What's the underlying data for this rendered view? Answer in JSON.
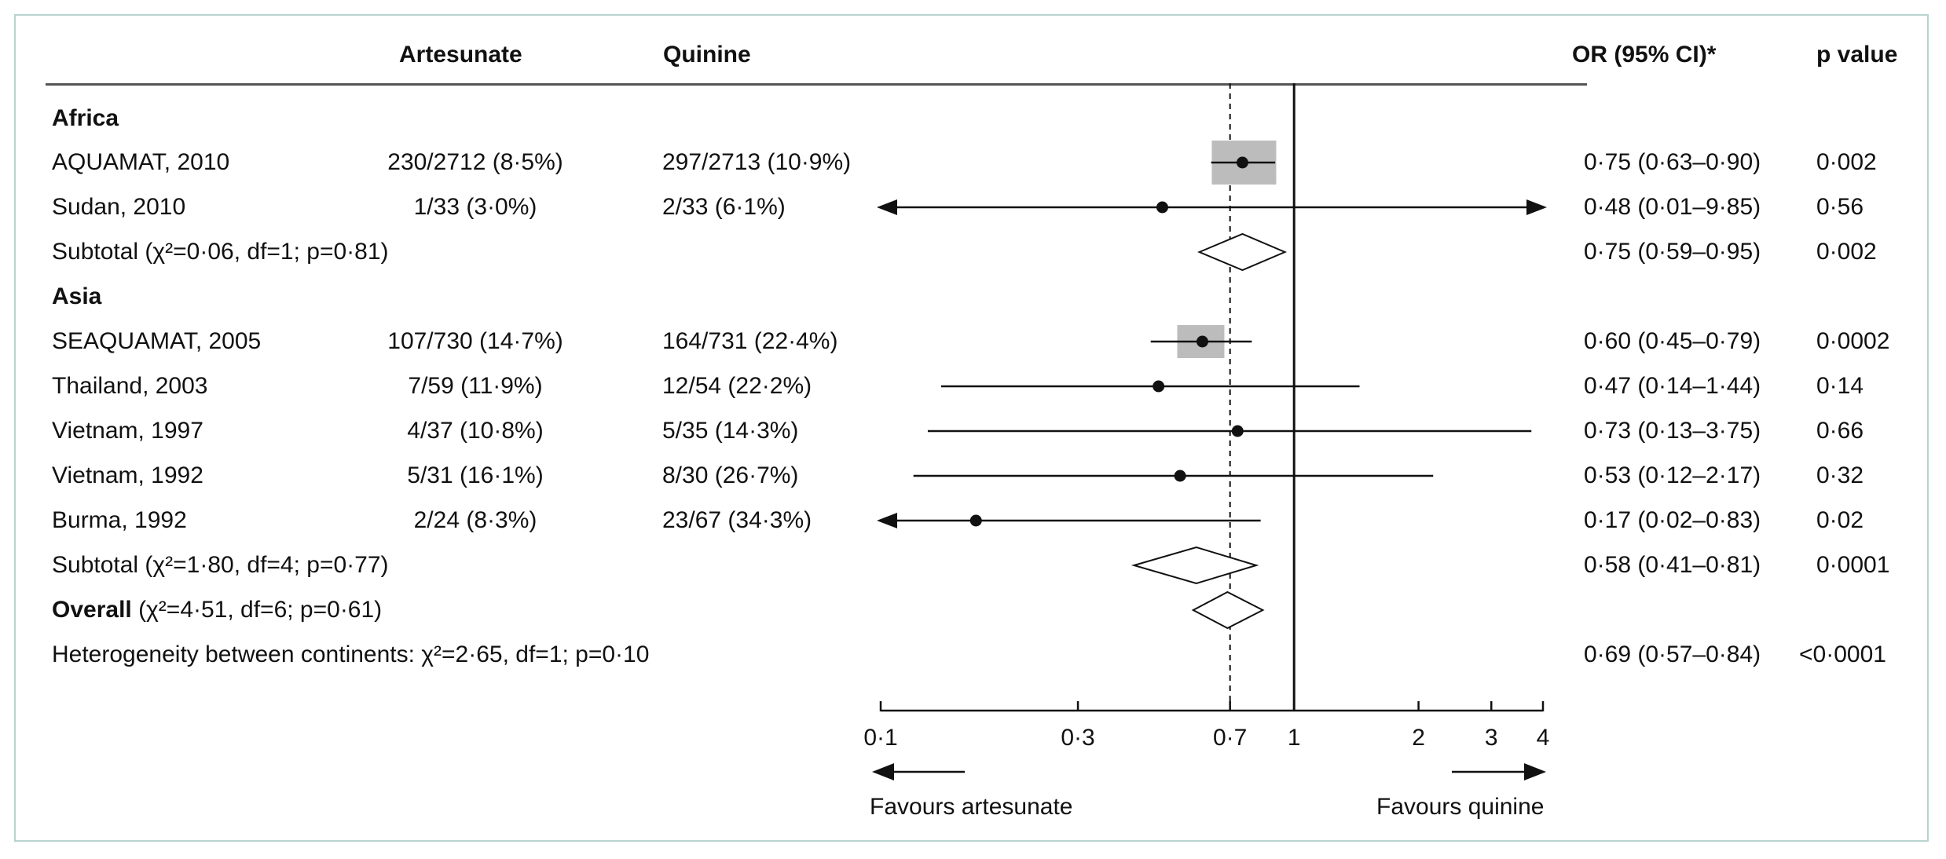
{
  "header": {
    "artesunate": "Artesunate",
    "quinine": "Quinine",
    "or_ci": "OR (95% CI)*",
    "p_value": "p value"
  },
  "colors": {
    "box": "#bcbcbc",
    "line": "#111111",
    "frame": "#b9d3cf"
  },
  "sections": {
    "africa": {
      "label": "Africa"
    },
    "asia": {
      "label": "Asia"
    }
  },
  "rows": [
    {
      "study": "AQUAMAT, 2010",
      "artesunate": "230/2712 (8·5%)",
      "quinine": "297/2713 (10·9%)",
      "or_text": "0·75 (0·63–0·90)",
      "p": "0·002"
    },
    {
      "study": "Sudan, 2010",
      "artesunate": "1/33 (3·0%)",
      "quinine": "2/33 (6·1%)",
      "or_text": "0·48 (0·01–9·85)",
      "p": "0·56"
    },
    {
      "study": "Subtotal (χ²=0·06, df=1; p=0·81)",
      "or_text": "0·75 (0·59–0·95)",
      "p": "0·002"
    },
    {
      "study": "SEAQUAMAT, 2005",
      "artesunate": "107/730 (14·7%)",
      "quinine": "164/731 (22·4%)",
      "or_text": "0·60 (0·45–0·79)",
      "p": "0·0002"
    },
    {
      "study": "Thailand, 2003",
      "artesunate": "7/59 (11·9%)",
      "quinine": "12/54 (22·2%)",
      "or_text": "0·47 (0·14–1·44)",
      "p": "0·14"
    },
    {
      "study": "Vietnam, 1997",
      "artesunate": "4/37 (10·8%)",
      "quinine": "5/35 (14·3%)",
      "or_text": "0·73 (0·13–3·75)",
      "p": "0·66"
    },
    {
      "study": "Vietnam, 1992",
      "artesunate": "5/31 (16·1%)",
      "quinine": "8/30 (26·7%)",
      "or_text": "0·53 (0·12–2·17)",
      "p": "0·32"
    },
    {
      "study": "Burma, 1992",
      "artesunate": "2/24 (8·3%)",
      "quinine": "23/67 (34·3%)",
      "or_text": "0·17 (0·02–0·83)",
      "p": "0·02"
    },
    {
      "study": "Subtotal (χ²=1·80, df=4; p=0·77)",
      "or_text": "0·58 (0·41–0·81)",
      "p": "0·0001"
    },
    {
      "study_bold": "Overall",
      "study_rest": " (χ²=4·51, df=6; p=0·61)"
    },
    {
      "study": "Heterogeneity between continents:  χ²=2·65, df=1; p=0·10",
      "or_text": "0·69 (0·57–0·84)",
      "p": "<0·0001"
    }
  ],
  "legend": {
    "left": "Favours artesunate",
    "right": "Favours quinine"
  },
  "chart_data": {
    "type": "forest",
    "scale": "log",
    "xlim": [
      0.1,
      4
    ],
    "xticks": [
      0.1,
      0.3,
      0.7,
      1,
      2,
      3,
      4
    ],
    "xtick_labels": [
      "0·1",
      "0·3",
      "0·7",
      "1",
      "2",
      "3",
      "4"
    ],
    "null_line": 1,
    "dashed_line": 0.7,
    "studies": [
      {
        "name": "AQUAMAT, 2010",
        "or": 0.75,
        "lo": 0.63,
        "hi": 0.9,
        "weight_box": true,
        "arrow_left": false,
        "arrow_right": false
      },
      {
        "name": "Sudan, 2010",
        "or": 0.48,
        "lo": 0.01,
        "hi": 9.85,
        "weight_box": false,
        "arrow_left": true,
        "arrow_right": true
      },
      {
        "name": "SEAQUAMAT, 2005",
        "or": 0.6,
        "lo": 0.45,
        "hi": 0.79,
        "weight_box": true,
        "arrow_left": false,
        "arrow_right": false
      },
      {
        "name": "Thailand, 2003",
        "or": 0.47,
        "lo": 0.14,
        "hi": 1.44,
        "weight_box": false,
        "arrow_left": false,
        "arrow_right": false
      },
      {
        "name": "Vietnam, 1997",
        "or": 0.73,
        "lo": 0.13,
        "hi": 3.75,
        "weight_box": false,
        "arrow_left": false,
        "arrow_right": false
      },
      {
        "name": "Vietnam, 1992",
        "or": 0.53,
        "lo": 0.12,
        "hi": 2.17,
        "weight_box": false,
        "arrow_left": false,
        "arrow_right": false
      },
      {
        "name": "Burma, 1992",
        "or": 0.17,
        "lo": 0.02,
        "hi": 0.83,
        "weight_box": false,
        "arrow_left": true,
        "arrow_right": false
      }
    ],
    "diamonds": [
      {
        "name": "Subtotal Africa",
        "or": 0.75,
        "lo": 0.59,
        "hi": 0.95
      },
      {
        "name": "Subtotal Asia",
        "or": 0.58,
        "lo": 0.41,
        "hi": 0.81
      },
      {
        "name": "Overall",
        "or": 0.69,
        "lo": 0.57,
        "hi": 0.84
      }
    ]
  }
}
